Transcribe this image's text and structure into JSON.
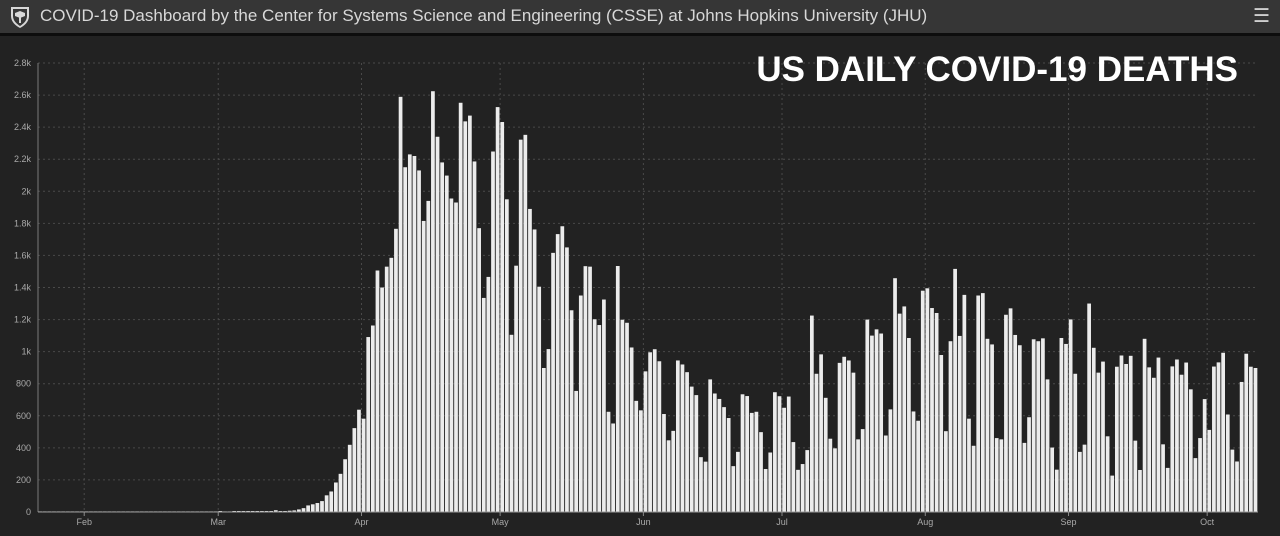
{
  "header": {
    "title": "COVID-19 Dashboard by the Center for Systems Science and Engineering (CSSE) at Johns Hopkins University (JHU)",
    "logo_icon": "jhu-shield-icon",
    "menu_icon": "hamburger-menu-icon",
    "menu_glyph": "☰"
  },
  "colors": {
    "background": "#222222",
    "header_bg": "#363636",
    "bar": "#ececec",
    "grid": "#4a4a4a",
    "text": "#ffffff"
  },
  "chart_data": {
    "type": "bar",
    "title": "US DAILY COVID-19 DEATHS",
    "xlabel": "",
    "ylabel": "",
    "ylim": [
      0,
      2800
    ],
    "yticks": [
      0,
      200,
      400,
      600,
      800,
      1000,
      1200,
      1400,
      1600,
      1800,
      2000,
      2200,
      2400,
      2600,
      2800
    ],
    "ytick_labels": [
      "0",
      "200",
      "400",
      "600",
      "800",
      "1k",
      "1.2k",
      "1.4k",
      "1.6k",
      "1.8k",
      "2k",
      "2.2k",
      "2.4k",
      "2.6k",
      "2.8k"
    ],
    "xtick_labels": [
      "Feb",
      "Mar",
      "Apr",
      "May",
      "Jun",
      "Jul",
      "Aug",
      "Sep",
      "Oct"
    ],
    "xtick_dates": [
      "2020-02-01",
      "2020-03-01",
      "2020-04-01",
      "2020-05-01",
      "2020-06-01",
      "2020-07-01",
      "2020-08-01",
      "2020-09-01",
      "2020-10-01"
    ],
    "grid": true,
    "bar_color": "#ececec",
    "start_date": "2020-01-22",
    "values": [
      0,
      0,
      0,
      0,
      0,
      0,
      0,
      0,
      0,
      0,
      0,
      0,
      0,
      0,
      0,
      0,
      0,
      0,
      0,
      0,
      0,
      0,
      0,
      0,
      0,
      0,
      0,
      0,
      0,
      0,
      0,
      0,
      0,
      0,
      0,
      0,
      0,
      0,
      0,
      1,
      0,
      0,
      1,
      5,
      2,
      2,
      6,
      3,
      5,
      2,
      4,
      11,
      3,
      2,
      8,
      10,
      16,
      24,
      41,
      48,
      56,
      68,
      104,
      128,
      184,
      238,
      329,
      419,
      523,
      638,
      582,
      1091,
      1163,
      1506,
      1400,
      1530,
      1585,
      1766,
      2589,
      2150,
      2230,
      2220,
      2130,
      1815,
      1940,
      2624,
      2340,
      2180,
      2098,
      1955,
      1930,
      2552,
      2436,
      2472,
      2186,
      1770,
      1335,
      1466,
      2248,
      2525,
      2432,
      1950,
      1105,
      1536,
      2322,
      2352,
      1890,
      1762,
      1405,
      898,
      1016,
      1616,
      1733,
      1782,
      1650,
      1258,
      755,
      1350,
      1533,
      1530,
      1202,
      1166,
      1325,
      625,
      552,
      1534,
      1199,
      1180,
      1026,
      693,
      634,
      877,
      996,
      1015,
      940,
      611,
      447,
      506,
      945,
      920,
      872,
      782,
      729,
      342,
      314,
      827,
      739,
      705,
      654,
      586,
      286,
      375,
      734,
      723,
      618,
      625,
      498,
      268,
      371,
      747,
      722,
      650,
      720,
      436,
      263,
      299,
      386,
      1225,
      862,
      983,
      712,
      457,
      397,
      930,
      968,
      945,
      869,
      453,
      517,
      1200,
      1100,
      1139,
      1113,
      477,
      640,
      1458,
      1237,
      1282,
      1085,
      627,
      569,
      1380,
      1395,
      1272,
      1241,
      979,
      504,
      1065,
      1516,
      1098,
      1354,
      582,
      413,
      1350,
      1365,
      1080,
      1045,
      461,
      453,
      1230,
      1270,
      1104,
      1040,
      431,
      591,
      1077,
      1065,
      1083,
      827,
      402,
      264,
      1085,
      1048,
      1201,
      862,
      375,
      420,
      1300,
      1024,
      869,
      938,
      472,
      227,
      906,
      976,
      923,
      974,
      445,
      262,
      1080,
      902,
      837,
      963,
      422,
      275,
      908,
      951,
      856,
      932,
      765,
      336,
      461,
      704,
      512,
      907,
      933,
      993,
      608,
      389,
      315,
      811,
      987,
      906,
      898
    ]
  }
}
